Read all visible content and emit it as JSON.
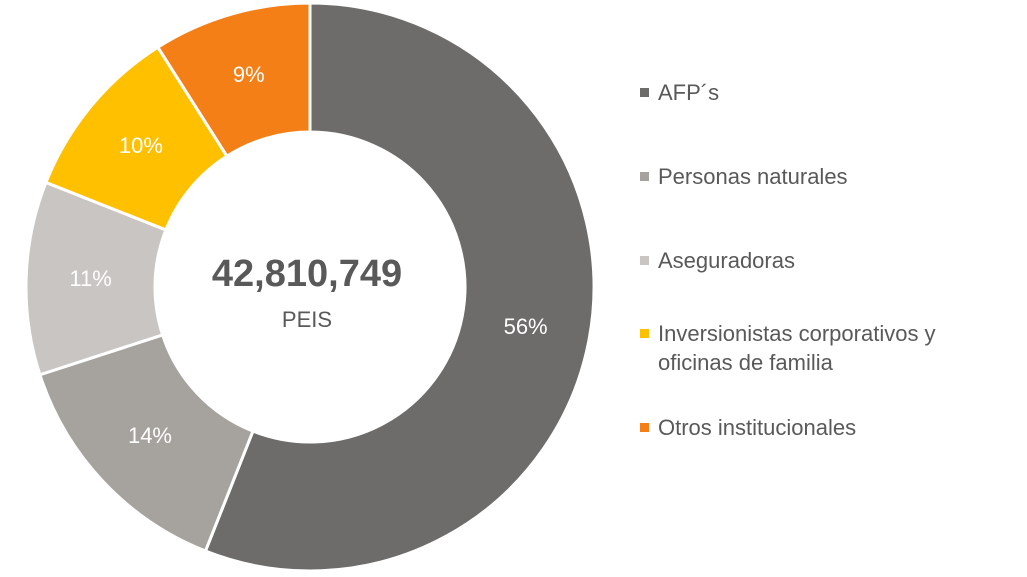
{
  "chart_data": {
    "type": "donut",
    "center_title": "42,810,749",
    "center_subtitle": "PEIS",
    "categories": [
      "AFP´s",
      "Personas naturales",
      "Aseguradoras",
      "Inversionistas corporativos y oficinas de familia",
      "Otros institucionales"
    ],
    "values": [
      56,
      14,
      11,
      10,
      9
    ],
    "value_labels": [
      "56%",
      "14%",
      "11%",
      "10%",
      "9%"
    ],
    "colors": [
      "#6d6c6a",
      "#a6a29e",
      "#c8c5c2",
      "#ffc000",
      "#f47f17"
    ],
    "legend": "right"
  }
}
